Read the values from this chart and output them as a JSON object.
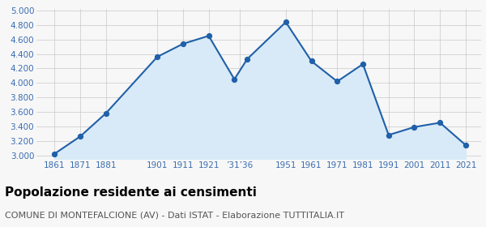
{
  "years": [
    1861,
    1871,
    1881,
    1901,
    1911,
    1921,
    1931,
    1936,
    1951,
    1961,
    1971,
    1981,
    1991,
    2001,
    2011,
    2021
  ],
  "population": [
    3020,
    3260,
    3580,
    4360,
    4540,
    4650,
    4050,
    4330,
    4840,
    4300,
    4020,
    4260,
    3280,
    3390,
    3450,
    3140
  ],
  "line_color": "#2060a8",
  "fill_color": "#d8eaf7",
  "marker_color": "#2060a8",
  "grid_color": "#c8c8c8",
  "background_color": "#f7f7f7",
  "ylim": [
    2950,
    5020
  ],
  "yticks": [
    3000,
    3200,
    3400,
    3600,
    3800,
    4000,
    4200,
    4400,
    4600,
    4800,
    5000
  ],
  "xlim_min": 1854,
  "xlim_max": 2027,
  "title": "Popolazione residente ai censimenti",
  "subtitle": "COMUNE DI MONTEFALCIONE (AV) - Dati ISTAT - Elaborazione TUTTITALIA.IT",
  "title_fontsize": 11,
  "subtitle_fontsize": 8,
  "tick_label_color": "#3a6cb0",
  "tick_label_fontsize": 7.5,
  "x_tick_positions": [
    1861,
    1871,
    1881,
    1901,
    1911,
    1921,
    1933,
    1951,
    1961,
    1971,
    1981,
    1991,
    2001,
    2011,
    2021
  ],
  "x_tick_labels": [
    "1861",
    "1871",
    "1881",
    "1901",
    "1911",
    "1921",
    "’31’36",
    "1951",
    "1961",
    "1971",
    "1981",
    "1991",
    "2001",
    "2011",
    "2021"
  ]
}
